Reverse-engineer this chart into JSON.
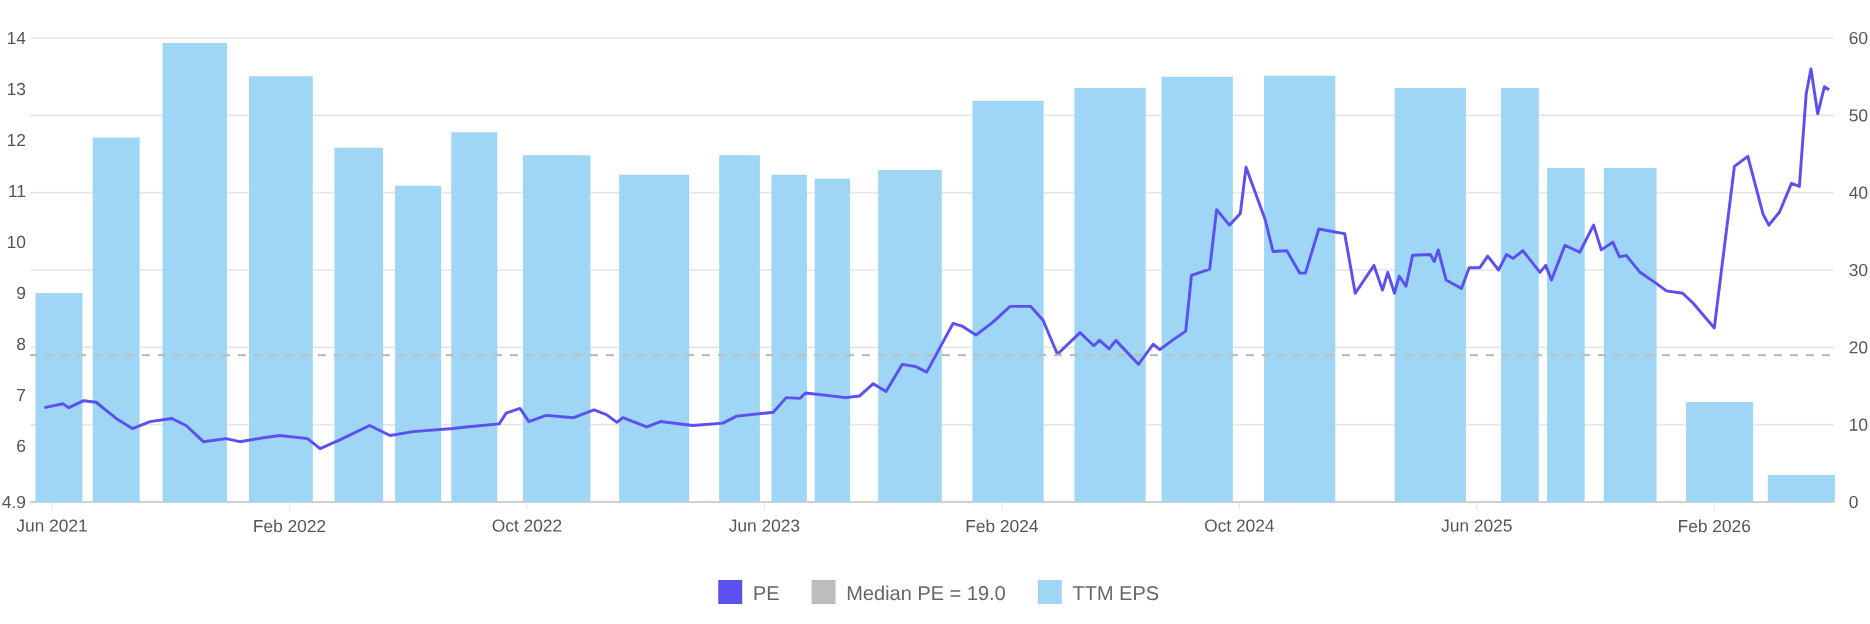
{
  "chart_data": {
    "type": "bar",
    "legend": "bottom",
    "grid": "y",
    "xlim": [
      "2021-05-09",
      "2026-06-02"
    ],
    "xticks": [
      {
        "value": "2021-06-01",
        "label": "Jun 2021"
      },
      {
        "value": "2022-02-01",
        "label": "Feb 2022"
      },
      {
        "value": "2022-10-01",
        "label": "Oct 2022"
      },
      {
        "value": "2023-06-01",
        "label": "Jun 2023"
      },
      {
        "value": "2024-02-01",
        "label": "Feb 2024"
      },
      {
        "value": "2024-10-01",
        "label": "Oct 2024"
      },
      {
        "value": "2025-06-01",
        "label": "Jun 2025"
      },
      {
        "value": "2026-02-01",
        "label": "Feb 2026"
      }
    ],
    "ylim": [
      4.9,
      14
    ],
    "yticks": [
      4.9,
      6,
      7,
      8,
      9,
      10,
      11,
      12,
      13,
      14
    ],
    "y2lim": [
      0,
      60
    ],
    "y2ticks": [
      0,
      10,
      20,
      30,
      40,
      50,
      60
    ],
    "series": [
      {
        "name": "PE",
        "type": "line",
        "axis": "y2",
        "color": "#5b50f0",
        "x": [
          "2021-05-24",
          "2021-06-12",
          "2021-06-18",
          "2021-07-03",
          "2021-07-16",
          "2021-08-06",
          "2021-08-23",
          "2021-09-10",
          "2021-10-02",
          "2021-10-17",
          "2021-11-04",
          "2021-11-27",
          "2021-12-11",
          "2022-01-05",
          "2022-01-22",
          "2022-02-18",
          "2022-03-02",
          "2022-03-22",
          "2022-04-22",
          "2022-05-13",
          "2022-06-06",
          "2022-07-17",
          "2022-07-30",
          "2022-09-03",
          "2022-09-10",
          "2022-09-24",
          "2022-10-03",
          "2022-10-21",
          "2022-11-18",
          "2022-12-09",
          "2022-12-22",
          "2023-01-02",
          "2023-01-08",
          "2023-02-02",
          "2023-02-15",
          "2023-03-19",
          "2023-04-19",
          "2023-05-03",
          "2023-06-10",
          "2023-06-23",
          "2023-07-07",
          "2023-07-13",
          "2023-08-24",
          "2023-09-07",
          "2023-09-21",
          "2023-10-04",
          "2023-10-21",
          "2023-11-04",
          "2023-11-15",
          "2023-12-12",
          "2023-12-22",
          "2024-01-05",
          "2024-01-22",
          "2024-02-09",
          "2024-02-29",
          "2024-03-13",
          "2024-03-28",
          "2024-04-20",
          "2024-05-04",
          "2024-05-10",
          "2024-05-20",
          "2024-05-27",
          "2024-06-19",
          "2024-07-04",
          "2024-07-11",
          "2024-07-24",
          "2024-08-07",
          "2024-08-13",
          "2024-09-01",
          "2024-09-08",
          "2024-09-21",
          "2024-10-02",
          "2024-10-08",
          "2024-10-28",
          "2024-11-05",
          "2024-11-19",
          "2024-12-02",
          "2024-12-08",
          "2024-12-22",
          "2025-01-13",
          "2025-01-18",
          "2025-01-29",
          "2025-02-16",
          "2025-02-24",
          "2025-03-01",
          "2025-03-08",
          "2025-03-13",
          "2025-03-20",
          "2025-03-27",
          "2025-04-14",
          "2025-04-18",
          "2025-04-22",
          "2025-04-30",
          "2025-05-16",
          "2025-05-24",
          "2025-06-04",
          "2025-06-12",
          "2025-06-23",
          "2025-07-01",
          "2025-07-08",
          "2025-07-18",
          "2025-08-05",
          "2025-08-11",
          "2025-08-17",
          "2025-08-31",
          "2025-09-15",
          "2025-09-29",
          "2025-10-07",
          "2025-10-19",
          "2025-10-26",
          "2025-11-02",
          "2025-11-16",
          "2025-12-02",
          "2025-12-13",
          "2025-12-30",
          "2026-01-10",
          "2026-02-01",
          "2026-02-20",
          "2026-03-05",
          "2026-03-21",
          "2026-03-27",
          "2026-04-07",
          "2026-04-19",
          "2026-04-27",
          "2026-05-04",
          "2026-05-09",
          "2026-05-16",
          "2026-05-23",
          "2026-05-28"
        ],
        "values": [
          12.2,
          12.7,
          12.2,
          13.1,
          12.9,
          10.8,
          9.5,
          10.4,
          10.8,
          9.9,
          7.8,
          8.2,
          7.8,
          8.3,
          8.6,
          8.2,
          6.9,
          8.0,
          9.9,
          8.6,
          9.1,
          9.5,
          9.7,
          10.1,
          11.5,
          12.1,
          10.4,
          11.2,
          10.9,
          11.9,
          11.3,
          10.3,
          10.9,
          9.7,
          10.4,
          9.9,
          10.2,
          11.1,
          11.6,
          13.5,
          13.4,
          14.1,
          13.5,
          13.7,
          15.3,
          14.3,
          17.8,
          17.5,
          16.8,
          23.1,
          22.7,
          21.6,
          23.2,
          25.3,
          25.3,
          23.5,
          19.1,
          21.9,
          20.2,
          20.9,
          19.8,
          20.9,
          17.8,
          20.4,
          19.7,
          20.9,
          22.1,
          29.3,
          30.1,
          37.8,
          35.8,
          37.3,
          43.3,
          36.5,
          32.4,
          32.5,
          29.6,
          29.6,
          35.3,
          34.8,
          34.7,
          27.0,
          30.6,
          27.4,
          29.7,
          27.0,
          29.2,
          27.9,
          31.9,
          32.0,
          31.1,
          32.6,
          28.7,
          27.6,
          30.3,
          30.3,
          31.8,
          30.0,
          32.0,
          31.5,
          32.5,
          29.7,
          30.6,
          28.7,
          33.2,
          32.3,
          35.8,
          32.6,
          33.6,
          31.7,
          31.9,
          29.7,
          28.3,
          27.3,
          27.0,
          25.7,
          22.5,
          43.4,
          44.7,
          37.2,
          35.8,
          37.5,
          41.2,
          40.8,
          52.8,
          56.0,
          50.2,
          53.7,
          53.3
        ]
      },
      {
        "name": "TTM EPS",
        "color": "#9fd6f5",
        "x": [
          "2021-06-08",
          "2021-08-06",
          "2021-10-26",
          "2022-01-23",
          "2022-04-11",
          "2022-06-11",
          "2022-08-08",
          "2022-11-01",
          "2023-02-09",
          "2023-05-06",
          "2023-06-26",
          "2023-08-10",
          "2023-10-29",
          "2024-02-07",
          "2024-05-21",
          "2024-08-19",
          "2024-12-02",
          "2025-04-14",
          "2025-07-15",
          "2025-09-01",
          "2025-11-06",
          "2026-02-06",
          "2026-04-29"
        ],
        "values": [
          9.0,
          12.05,
          13.9,
          13.25,
          11.85,
          11.1,
          12.15,
          11.7,
          11.32,
          11.7,
          11.32,
          11.24,
          11.41,
          12.77,
          13.02,
          13.24,
          13.26,
          13.02,
          13.02,
          11.45,
          11.45,
          6.86,
          5.43
        ]
      }
    ],
    "ref_lines": [
      {
        "axis": "y2",
        "value": 19.0,
        "label": "Median PE = 19.0",
        "color": "#bdbdbd",
        "line_style": "dashed"
      }
    ]
  }
}
